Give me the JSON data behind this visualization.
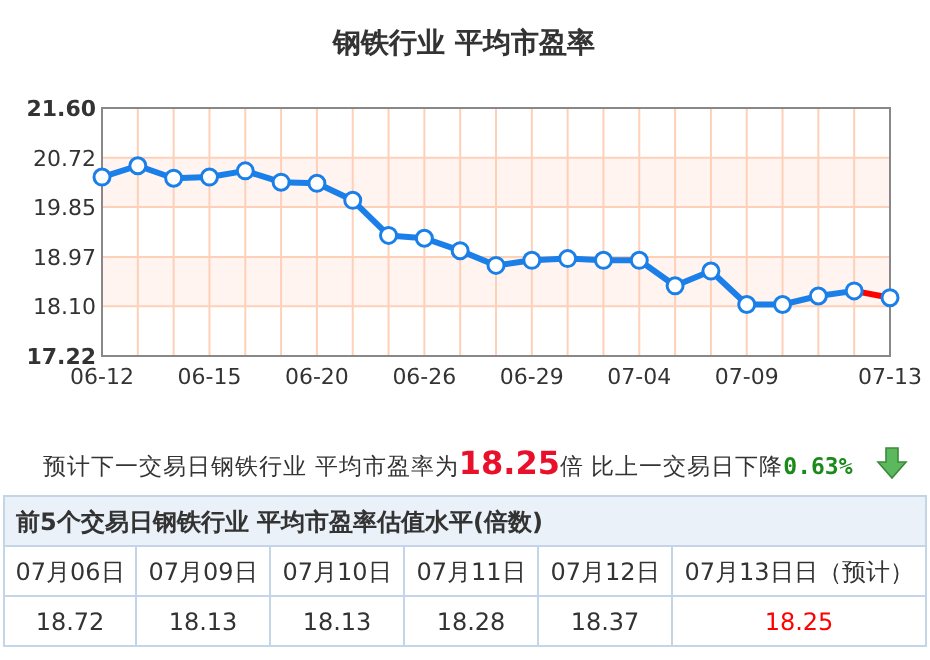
{
  "chart_data": {
    "type": "line",
    "title": "钢铁行业  平均市盈率",
    "categories": [
      "06-12",
      null,
      null,
      "06-15",
      null,
      null,
      "06-20",
      null,
      null,
      "06-26",
      null,
      null,
      "06-29",
      null,
      null,
      "07-04",
      null,
      null,
      "07-09",
      null,
      null,
      null,
      "07-13"
    ],
    "series": [
      {
        "color": "#1a7fe8",
        "values": [
          20.38,
          20.58,
          20.36,
          20.38,
          20.49,
          20.29,
          20.27,
          19.97,
          19.35,
          19.3,
          19.08,
          18.82,
          18.91,
          18.94,
          18.91,
          18.91,
          18.46,
          18.72,
          18.13,
          18.13,
          18.28,
          18.37,
          null
        ]
      },
      {
        "color": "#ff0000",
        "values": [
          null,
          null,
          null,
          null,
          null,
          null,
          null,
          null,
          null,
          null,
          null,
          null,
          null,
          null,
          null,
          null,
          null,
          null,
          null,
          null,
          null,
          18.37,
          18.25
        ]
      }
    ],
    "ylim": [
      17.22,
      21.6
    ],
    "yticks": [
      17.22,
      {
        "value": 18.1,
        "label": "18.10"
      },
      18.97,
      19.85,
      20.72,
      {
        "value": 21.6,
        "label": "21.60"
      }
    ],
    "bands": [
      {
        "axis": "y",
        "from": 18.1,
        "to": 18.97,
        "color": "#fff4f0"
      },
      {
        "axis": "y",
        "from": 19.85,
        "to": 20.72,
        "color": "#fff4f0"
      }
    ],
    "grid": true,
    "marker": "circle",
    "line_style": "solid",
    "annotations": [
      "预计下一交易日钢铁行业 平均市盈率为",
      "18.25",
      "倍 比上一交易日下降",
      "0.63%",
      "前5个交易日钢铁行业 平均市盈率估值水平(倍数)",
      "07月06日",
      "07月09日",
      "07月10日",
      "07月11日",
      "07月12日",
      "07月13日日（预计）",
      "18.72",
      "18.13",
      "18.13",
      "18.28",
      "18.37",
      "18.25"
    ]
  }
}
